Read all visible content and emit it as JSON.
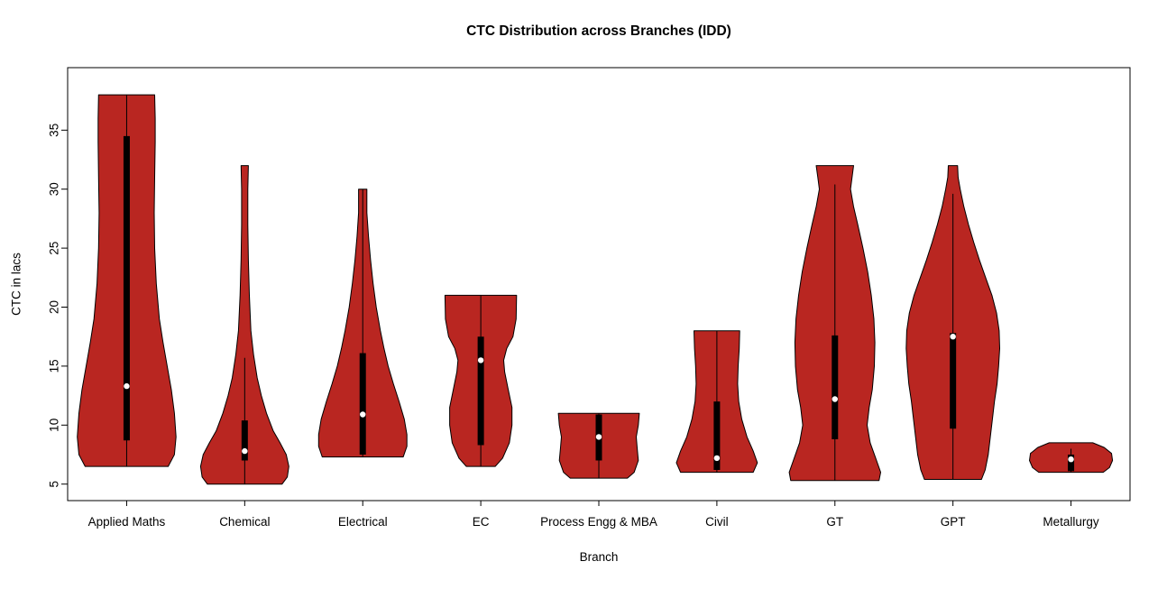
{
  "chart_data": {
    "type": "violin",
    "title": "CTC Distribution across Branches (IDD)",
    "xlabel": "Branch",
    "ylabel": "CTC in lacs",
    "ylim": [
      3.6,
      40.3
    ],
    "yticks": [
      5,
      10,
      15,
      20,
      25,
      30,
      35
    ],
    "fill_color": "#B92621",
    "outline_color": "#000000",
    "median_dot_color": "#ffffff",
    "categories": [
      "Applied Maths",
      "Chemical",
      "Electrical",
      "EC",
      "Process Engg & MBA",
      "Civil",
      "GT",
      "GPT",
      "Metallurgy"
    ],
    "series": [
      {
        "branch": "Applied Maths",
        "min": 6.5,
        "max": 38,
        "whisker_low": 6.5,
        "whisker_high": 38,
        "q1": 8.7,
        "median": 13.3,
        "q3": 34.5,
        "profile": [
          [
            6.5,
            0.8
          ],
          [
            7.5,
            0.92
          ],
          [
            9,
            0.95
          ],
          [
            11,
            0.92
          ],
          [
            13,
            0.86
          ],
          [
            15,
            0.78
          ],
          [
            17,
            0.7
          ],
          [
            19,
            0.63
          ],
          [
            22,
            0.57
          ],
          [
            25,
            0.54
          ],
          [
            28,
            0.53
          ],
          [
            31,
            0.54
          ],
          [
            34,
            0.55
          ],
          [
            36,
            0.55
          ],
          [
            38,
            0.54
          ]
        ]
      },
      {
        "branch": "Chemical",
        "min": 5,
        "max": 32,
        "whisker_low": 5,
        "whisker_high": 15.7,
        "q1": 7.0,
        "median": 7.8,
        "q3": 10.4,
        "profile": [
          [
            5,
            0.72
          ],
          [
            5.6,
            0.82
          ],
          [
            6.5,
            0.85
          ],
          [
            7.5,
            0.8
          ],
          [
            8.5,
            0.68
          ],
          [
            9.5,
            0.55
          ],
          [
            11,
            0.42
          ],
          [
            12.5,
            0.32
          ],
          [
            14,
            0.24
          ],
          [
            16,
            0.17
          ],
          [
            18,
            0.12
          ],
          [
            21,
            0.09
          ],
          [
            24,
            0.07
          ],
          [
            27,
            0.06
          ],
          [
            30,
            0.06
          ],
          [
            32,
            0.07
          ]
        ]
      },
      {
        "branch": "Electrical",
        "min": 7.3,
        "max": 30,
        "whisker_low": 7.3,
        "whisker_high": 30,
        "q1": 7.5,
        "median": 10.9,
        "q3": 16.1,
        "profile": [
          [
            7.3,
            0.78
          ],
          [
            8.2,
            0.85
          ],
          [
            9.2,
            0.85
          ],
          [
            10.5,
            0.8
          ],
          [
            12,
            0.7
          ],
          [
            13.5,
            0.59
          ],
          [
            15,
            0.49
          ],
          [
            16.5,
            0.41
          ],
          [
            18,
            0.34
          ],
          [
            20,
            0.26
          ],
          [
            22,
            0.2
          ],
          [
            24,
            0.15
          ],
          [
            26,
            0.11
          ],
          [
            28,
            0.08
          ],
          [
            30,
            0.08
          ]
        ]
      },
      {
        "branch": "EC",
        "min": 6.5,
        "max": 21,
        "whisker_low": 6.5,
        "whisker_high": 21,
        "q1": 8.3,
        "median": 15.5,
        "q3": 17.5,
        "profile": [
          [
            6.5,
            0.28
          ],
          [
            7.2,
            0.42
          ],
          [
            8.5,
            0.55
          ],
          [
            10,
            0.6
          ],
          [
            11.5,
            0.6
          ],
          [
            13,
            0.53
          ],
          [
            14.5,
            0.46
          ],
          [
            15.5,
            0.44
          ],
          [
            16.5,
            0.5
          ],
          [
            17.5,
            0.62
          ],
          [
            19,
            0.68
          ],
          [
            21,
            0.69
          ]
        ]
      },
      {
        "branch": "Process Engg & MBA",
        "min": 5.5,
        "max": 11,
        "whisker_low": 5.5,
        "whisker_high": 11,
        "q1": 7.0,
        "median": 9.0,
        "q3": 10.9,
        "profile": [
          [
            5.5,
            0.55
          ],
          [
            6,
            0.68
          ],
          [
            7,
            0.76
          ],
          [
            8,
            0.74
          ],
          [
            9,
            0.72
          ],
          [
            10,
            0.76
          ],
          [
            11,
            0.78
          ]
        ]
      },
      {
        "branch": "Civil",
        "min": 6,
        "max": 18,
        "whisker_low": 6,
        "whisker_high": 18,
        "q1": 6.2,
        "median": 7.2,
        "q3": 12.0,
        "profile": [
          [
            6,
            0.7
          ],
          [
            6.8,
            0.78
          ],
          [
            7.8,
            0.7
          ],
          [
            9,
            0.58
          ],
          [
            10.5,
            0.48
          ],
          [
            12,
            0.42
          ],
          [
            13.5,
            0.4
          ],
          [
            15,
            0.41
          ],
          [
            16.5,
            0.43
          ],
          [
            18,
            0.44
          ]
        ]
      },
      {
        "branch": "GT",
        "min": 5.3,
        "max": 32,
        "whisker_low": 5.3,
        "whisker_high": 30.4,
        "q1": 8.8,
        "median": 12.2,
        "q3": 17.6,
        "profile": [
          [
            5.3,
            0.85
          ],
          [
            6,
            0.88
          ],
          [
            7,
            0.8
          ],
          [
            8.5,
            0.68
          ],
          [
            10,
            0.62
          ],
          [
            11.5,
            0.66
          ],
          [
            13,
            0.72
          ],
          [
            15,
            0.76
          ],
          [
            17,
            0.77
          ],
          [
            19,
            0.75
          ],
          [
            21,
            0.7
          ],
          [
            23,
            0.63
          ],
          [
            25,
            0.54
          ],
          [
            27,
            0.44
          ],
          [
            28.5,
            0.36
          ],
          [
            30,
            0.3
          ],
          [
            31,
            0.33
          ],
          [
            32,
            0.36
          ]
        ]
      },
      {
        "branch": "GPT",
        "min": 5.4,
        "max": 32,
        "whisker_low": 5.4,
        "whisker_high": 29.6,
        "q1": 9.7,
        "median": 17.5,
        "q3": 17.8,
        "profile": [
          [
            5.4,
            0.55
          ],
          [
            6.2,
            0.62
          ],
          [
            7.5,
            0.68
          ],
          [
            9,
            0.72
          ],
          [
            10.5,
            0.76
          ],
          [
            12,
            0.8
          ],
          [
            13.5,
            0.85
          ],
          [
            15,
            0.88
          ],
          [
            16.5,
            0.9
          ],
          [
            18,
            0.89
          ],
          [
            19.5,
            0.84
          ],
          [
            21,
            0.75
          ],
          [
            22.5,
            0.63
          ],
          [
            24,
            0.51
          ],
          [
            25.5,
            0.4
          ],
          [
            27,
            0.3
          ],
          [
            28.5,
            0.21
          ],
          [
            30,
            0.14
          ],
          [
            31,
            0.1
          ],
          [
            32,
            0.09
          ]
        ]
      },
      {
        "branch": "Metallurgy",
        "min": 6,
        "max": 8.5,
        "whisker_low": 6,
        "whisker_high": 8,
        "q1": 6.1,
        "median": 7.1,
        "q3": 7.5,
        "profile": [
          [
            6,
            0.62
          ],
          [
            6.4,
            0.74
          ],
          [
            7,
            0.8
          ],
          [
            7.6,
            0.78
          ],
          [
            8.1,
            0.64
          ],
          [
            8.5,
            0.42
          ]
        ]
      }
    ]
  }
}
